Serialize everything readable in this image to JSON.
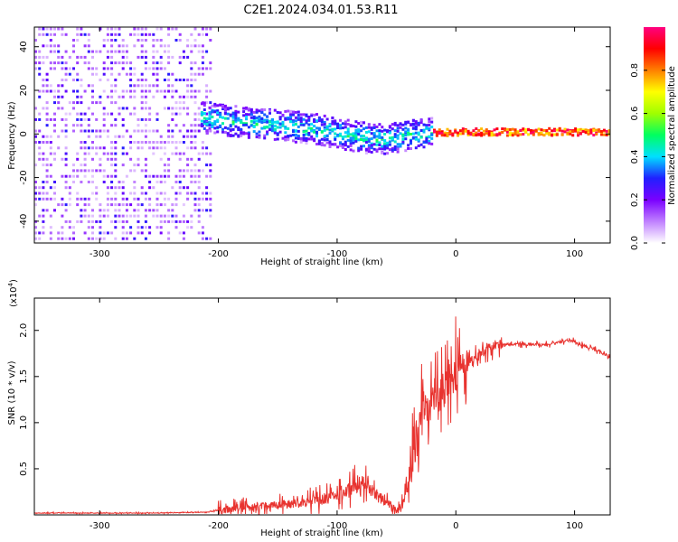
{
  "title": "C2E1.2024.034.01.53.R11",
  "chart_data": [
    {
      "type": "heatmap",
      "xlabel": "Height of straight line (km)",
      "ylabel": "Frequency (Hz)",
      "xlim": [
        -355,
        130
      ],
      "ylim": [
        -50,
        49
      ],
      "xticks": [
        -300,
        -200,
        -100,
        0,
        100
      ],
      "xtick_labels": [
        "-300",
        "-200",
        "-100",
        "0",
        "100"
      ],
      "yticks": [
        -40,
        -20,
        0,
        20,
        40
      ],
      "ytick_labels": [
        "-40",
        "-20",
        "0",
        "20",
        "40"
      ],
      "colorbar": {
        "label": "Normalized spectral amplitude",
        "range": [
          0,
          1
        ],
        "ticks": [
          0.0,
          0.2,
          0.4,
          0.6,
          0.8
        ],
        "tick_labels": [
          "0.0",
          "0.2",
          "0.4",
          "0.6",
          "0.8"
        ],
        "colors": [
          "#ffffff",
          "#c080ff",
          "#7a00ff",
          "#2020ff",
          "#00e0ff",
          "#00ff60",
          "#a0ff00",
          "#ffff00",
          "#ff8000",
          "#ff0000",
          "#ff0080"
        ]
      },
      "ridge": {
        "x": [
          -215,
          -200,
          -180,
          -160,
          -140,
          -120,
          -100,
          -80,
          -60,
          -40,
          -20,
          0,
          50,
          100,
          130
        ],
        "y": [
          8,
          7,
          6,
          5,
          4,
          3,
          1,
          -1,
          -2,
          0,
          1,
          1.5,
          1.5,
          1.5,
          1.5
        ]
      },
      "grid": false
    },
    {
      "type": "line",
      "xlabel": "Height of straight line (km)",
      "ylabel": "SNR (10 * v/v)",
      "y_multiplier_label": "(x10",
      "y_multiplier_exp": "4",
      "xlim": [
        -355,
        130
      ],
      "ylim": [
        0,
        2.35
      ],
      "xticks": [
        -300,
        -200,
        -100,
        0,
        100
      ],
      "xtick_labels": [
        "-300",
        "-200",
        "-100",
        "0",
        "100"
      ],
      "yticks": [
        0.5,
        1.0,
        1.5,
        2.0
      ],
      "ytick_labels": [
        "0.5",
        "1.0",
        "1.5",
        "2.0"
      ],
      "color": "#e8332f",
      "series": [
        {
          "x": [
            -355,
            -300,
            -250,
            -210,
            -200,
            -180,
            -160,
            -140,
            -120,
            -100,
            -90,
            -80,
            -70,
            -60,
            -50,
            -45,
            -40,
            -35,
            -30,
            -25,
            -20,
            -15,
            -10,
            -5,
            0,
            10,
            20,
            30,
            40,
            60,
            80,
            90,
            95,
            100,
            105,
            110,
            120,
            130
          ],
          "y": [
            0.02,
            0.02,
            0.02,
            0.03,
            0.05,
            0.08,
            0.1,
            0.12,
            0.15,
            0.2,
            0.28,
            0.35,
            0.25,
            0.15,
            0.05,
            0.1,
            0.3,
            0.7,
            1.1,
            1.2,
            1.25,
            1.3,
            1.35,
            1.45,
            1.5,
            1.65,
            1.75,
            1.82,
            1.85,
            1.85,
            1.85,
            1.88,
            1.9,
            1.88,
            1.85,
            1.82,
            1.78,
            1.7
          ]
        }
      ],
      "grid": false
    }
  ]
}
